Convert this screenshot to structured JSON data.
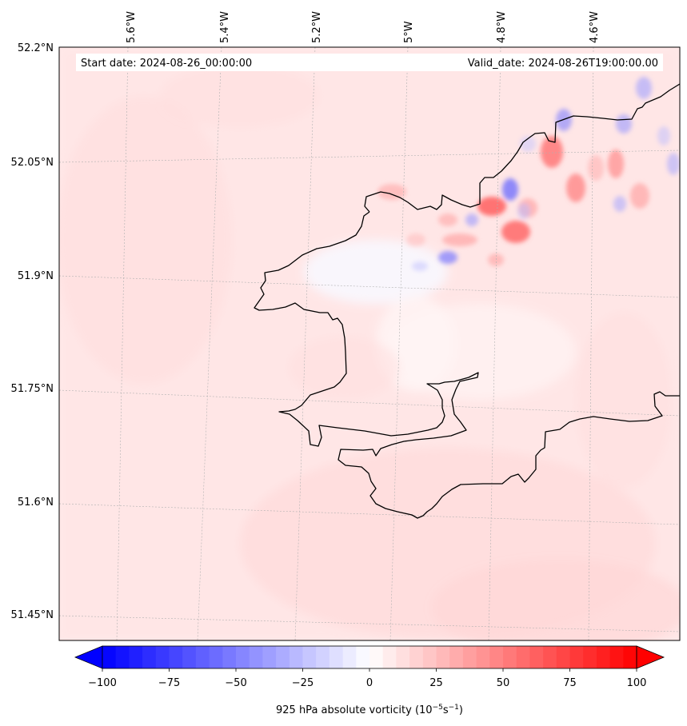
{
  "header": {
    "start_date": "Start date: 2024-08-26_00:00:00",
    "valid_date": "Valid_date: 2024-08-26T19:00:00.00"
  },
  "longitude_labels": [
    "5.6°W",
    "5.4°W",
    "5.2°W",
    "5°W",
    "4.8°W",
    "4.6°W"
  ],
  "latitude_labels": [
    "52.2°N",
    "52.05°N",
    "51.9°N",
    "51.75°N",
    "51.6°N",
    "51.45°N"
  ],
  "colorbar": {
    "tick_labels": [
      "−100",
      "−75",
      "−50",
      "−25",
      "0",
      "25",
      "50",
      "75",
      "100"
    ],
    "label_main": "925 hPa absolute vorticity (10",
    "label_sup1": "−5",
    "label_mid": "s",
    "label_sup2": "−1",
    "label_end": ")",
    "min": -100,
    "max": 100,
    "levels": 40,
    "low_color": "#0000ff",
    "mid_color": "#ffffff",
    "high_color": "#ff0000",
    "extend": "both"
  },
  "colors": {
    "background_field": "#ffeaea",
    "coastline": "#000000",
    "gridline": "#b0b0b0"
  }
}
